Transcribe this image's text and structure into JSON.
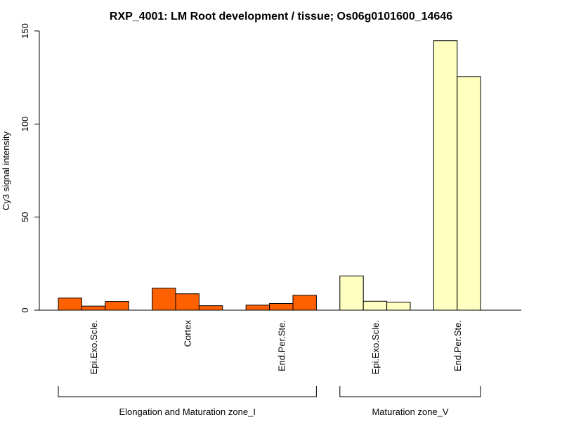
{
  "chart_data": {
    "type": "bar",
    "title": "RXP_4001: LM Root development / tissue; Os06g0101600_14646",
    "ylabel": "Cy3 signal intensity",
    "xlabel": "",
    "ylim": [
      0,
      150
    ],
    "yticks": [
      0,
      50,
      100,
      150
    ],
    "groups": [
      {
        "label": "Elongation and Maturation zone_I",
        "color": "#FF6000",
        "categories": [
          {
            "label": "Epi.Exo.Scle.",
            "values": [
              6.5,
              2.2,
              4.7
            ]
          },
          {
            "label": "Cortex",
            "values": [
              11.8,
              8.8,
              2.4
            ]
          },
          {
            "label": "End.Per.Ste.",
            "values": [
              2.7,
              3.6,
              8.0
            ]
          }
        ]
      },
      {
        "label": "Maturation zone_V",
        "color": "#FFFFC0",
        "categories": [
          {
            "label": "Epi.Exo.Scle.",
            "values": [
              18.4,
              4.8,
              4.3
            ]
          },
          {
            "label": "End.Per.Ste.",
            "values": [
              144.8,
              125.5
            ]
          }
        ]
      }
    ]
  }
}
